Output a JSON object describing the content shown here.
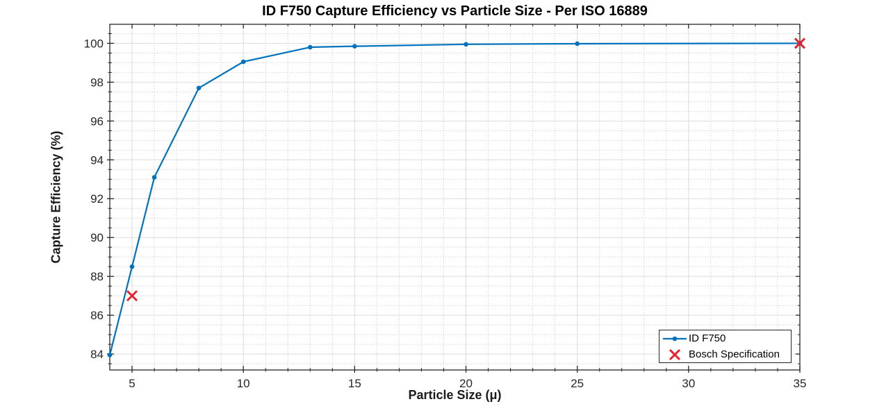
{
  "chart_data": {
    "type": "line",
    "title": "ID F750 Capture Efficiency vs Particle Size - Per ISO 16889",
    "xlabel": "Particle Size (μ)",
    "ylabel": "Capture Efficiency (%)",
    "xlim": [
      4,
      35
    ],
    "ylim": [
      83.18,
      100.98
    ],
    "x_major_ticks": [
      5,
      10,
      15,
      20,
      25,
      30,
      35
    ],
    "y_major_ticks": [
      84,
      86,
      88,
      90,
      92,
      94,
      96,
      98,
      100
    ],
    "x_minor_step": 1,
    "y_minor_step": 0.5,
    "grid": {
      "major": true,
      "minor": true,
      "minor_style": "dotted"
    },
    "legend": {
      "position": "bottom-right"
    },
    "series": [
      {
        "name": "ID F750",
        "style": "line+marker",
        "marker": "dot",
        "color": "#0072bd",
        "points": [
          [
            4,
            83.95
          ],
          [
            5,
            88.5
          ],
          [
            6,
            93.1
          ],
          [
            8,
            97.7
          ],
          [
            10,
            99.05
          ],
          [
            13,
            99.8
          ],
          [
            15,
            99.85
          ],
          [
            20,
            99.95
          ],
          [
            25,
            99.98
          ],
          [
            35,
            100
          ]
        ]
      },
      {
        "name": "Bosch Specification",
        "style": "scatter",
        "marker": "x",
        "color": "#e8212d",
        "points": [
          [
            5,
            87
          ],
          [
            35,
            100
          ]
        ]
      }
    ]
  },
  "colors": {
    "series_blue": "#0072bd",
    "spec_red": "#e8212d",
    "axis": "#262626",
    "grid_major": "#dbdbdb",
    "grid_minor": "#c4c4c4",
    "tick_text": "#262626",
    "background": "#ffffff"
  }
}
